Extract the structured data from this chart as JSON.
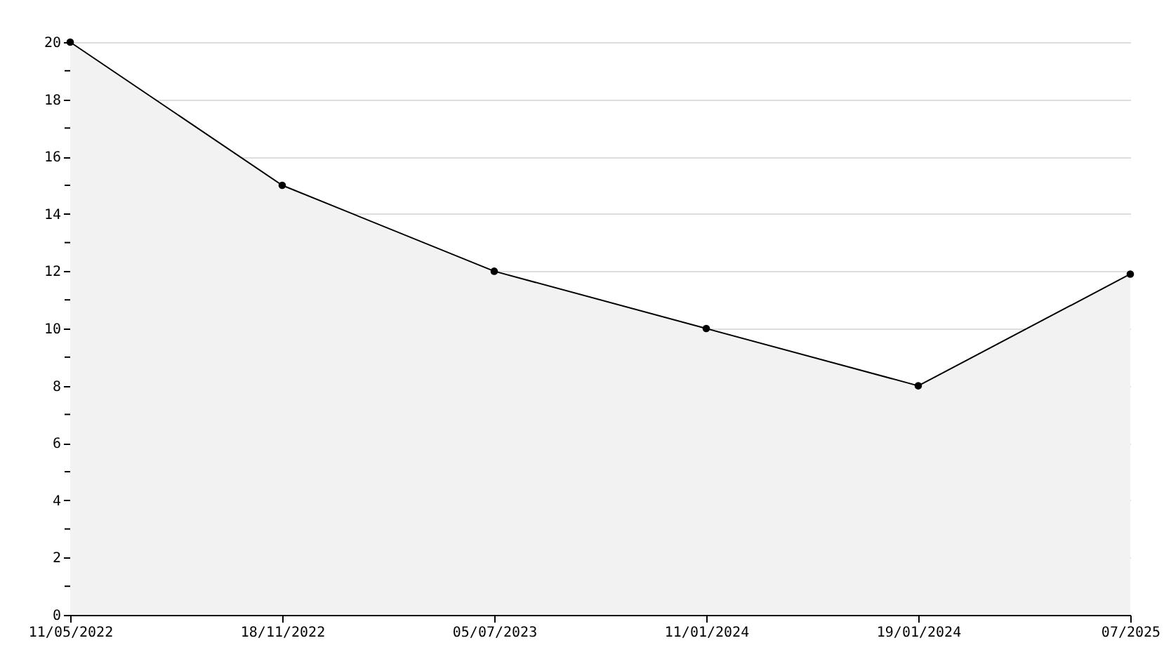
{
  "chart_data": {
    "type": "area",
    "categories": [
      "11/05/2022",
      "18/11/2022",
      "05/07/2023",
      "11/01/2024",
      "19/01/2024",
      "07/2025"
    ],
    "series": [
      {
        "color": "#000000",
        "values": [
          20,
          15,
          12,
          10,
          8,
          11.9
        ]
      }
    ],
    "ylim": [
      0,
      20
    ],
    "yticks": [
      0,
      {
        "value": 1,
        "label": null
      },
      2,
      {
        "value": 3,
        "label": null
      },
      4,
      {
        "value": 5,
        "label": null
      },
      6,
      {
        "value": 7,
        "label": null
      },
      8,
      {
        "value": 9,
        "label": null
      },
      10,
      {
        "value": 11,
        "label": null
      },
      12,
      {
        "value": 13,
        "label": null
      },
      14,
      {
        "value": 15,
        "label": null
      },
      16,
      {
        "value": 17,
        "label": null
      },
      18,
      {
        "value": 19,
        "label": null
      },
      20
    ],
    "grid": "y",
    "marker": "circle",
    "line_style": "solid",
    "legend": false
  }
}
